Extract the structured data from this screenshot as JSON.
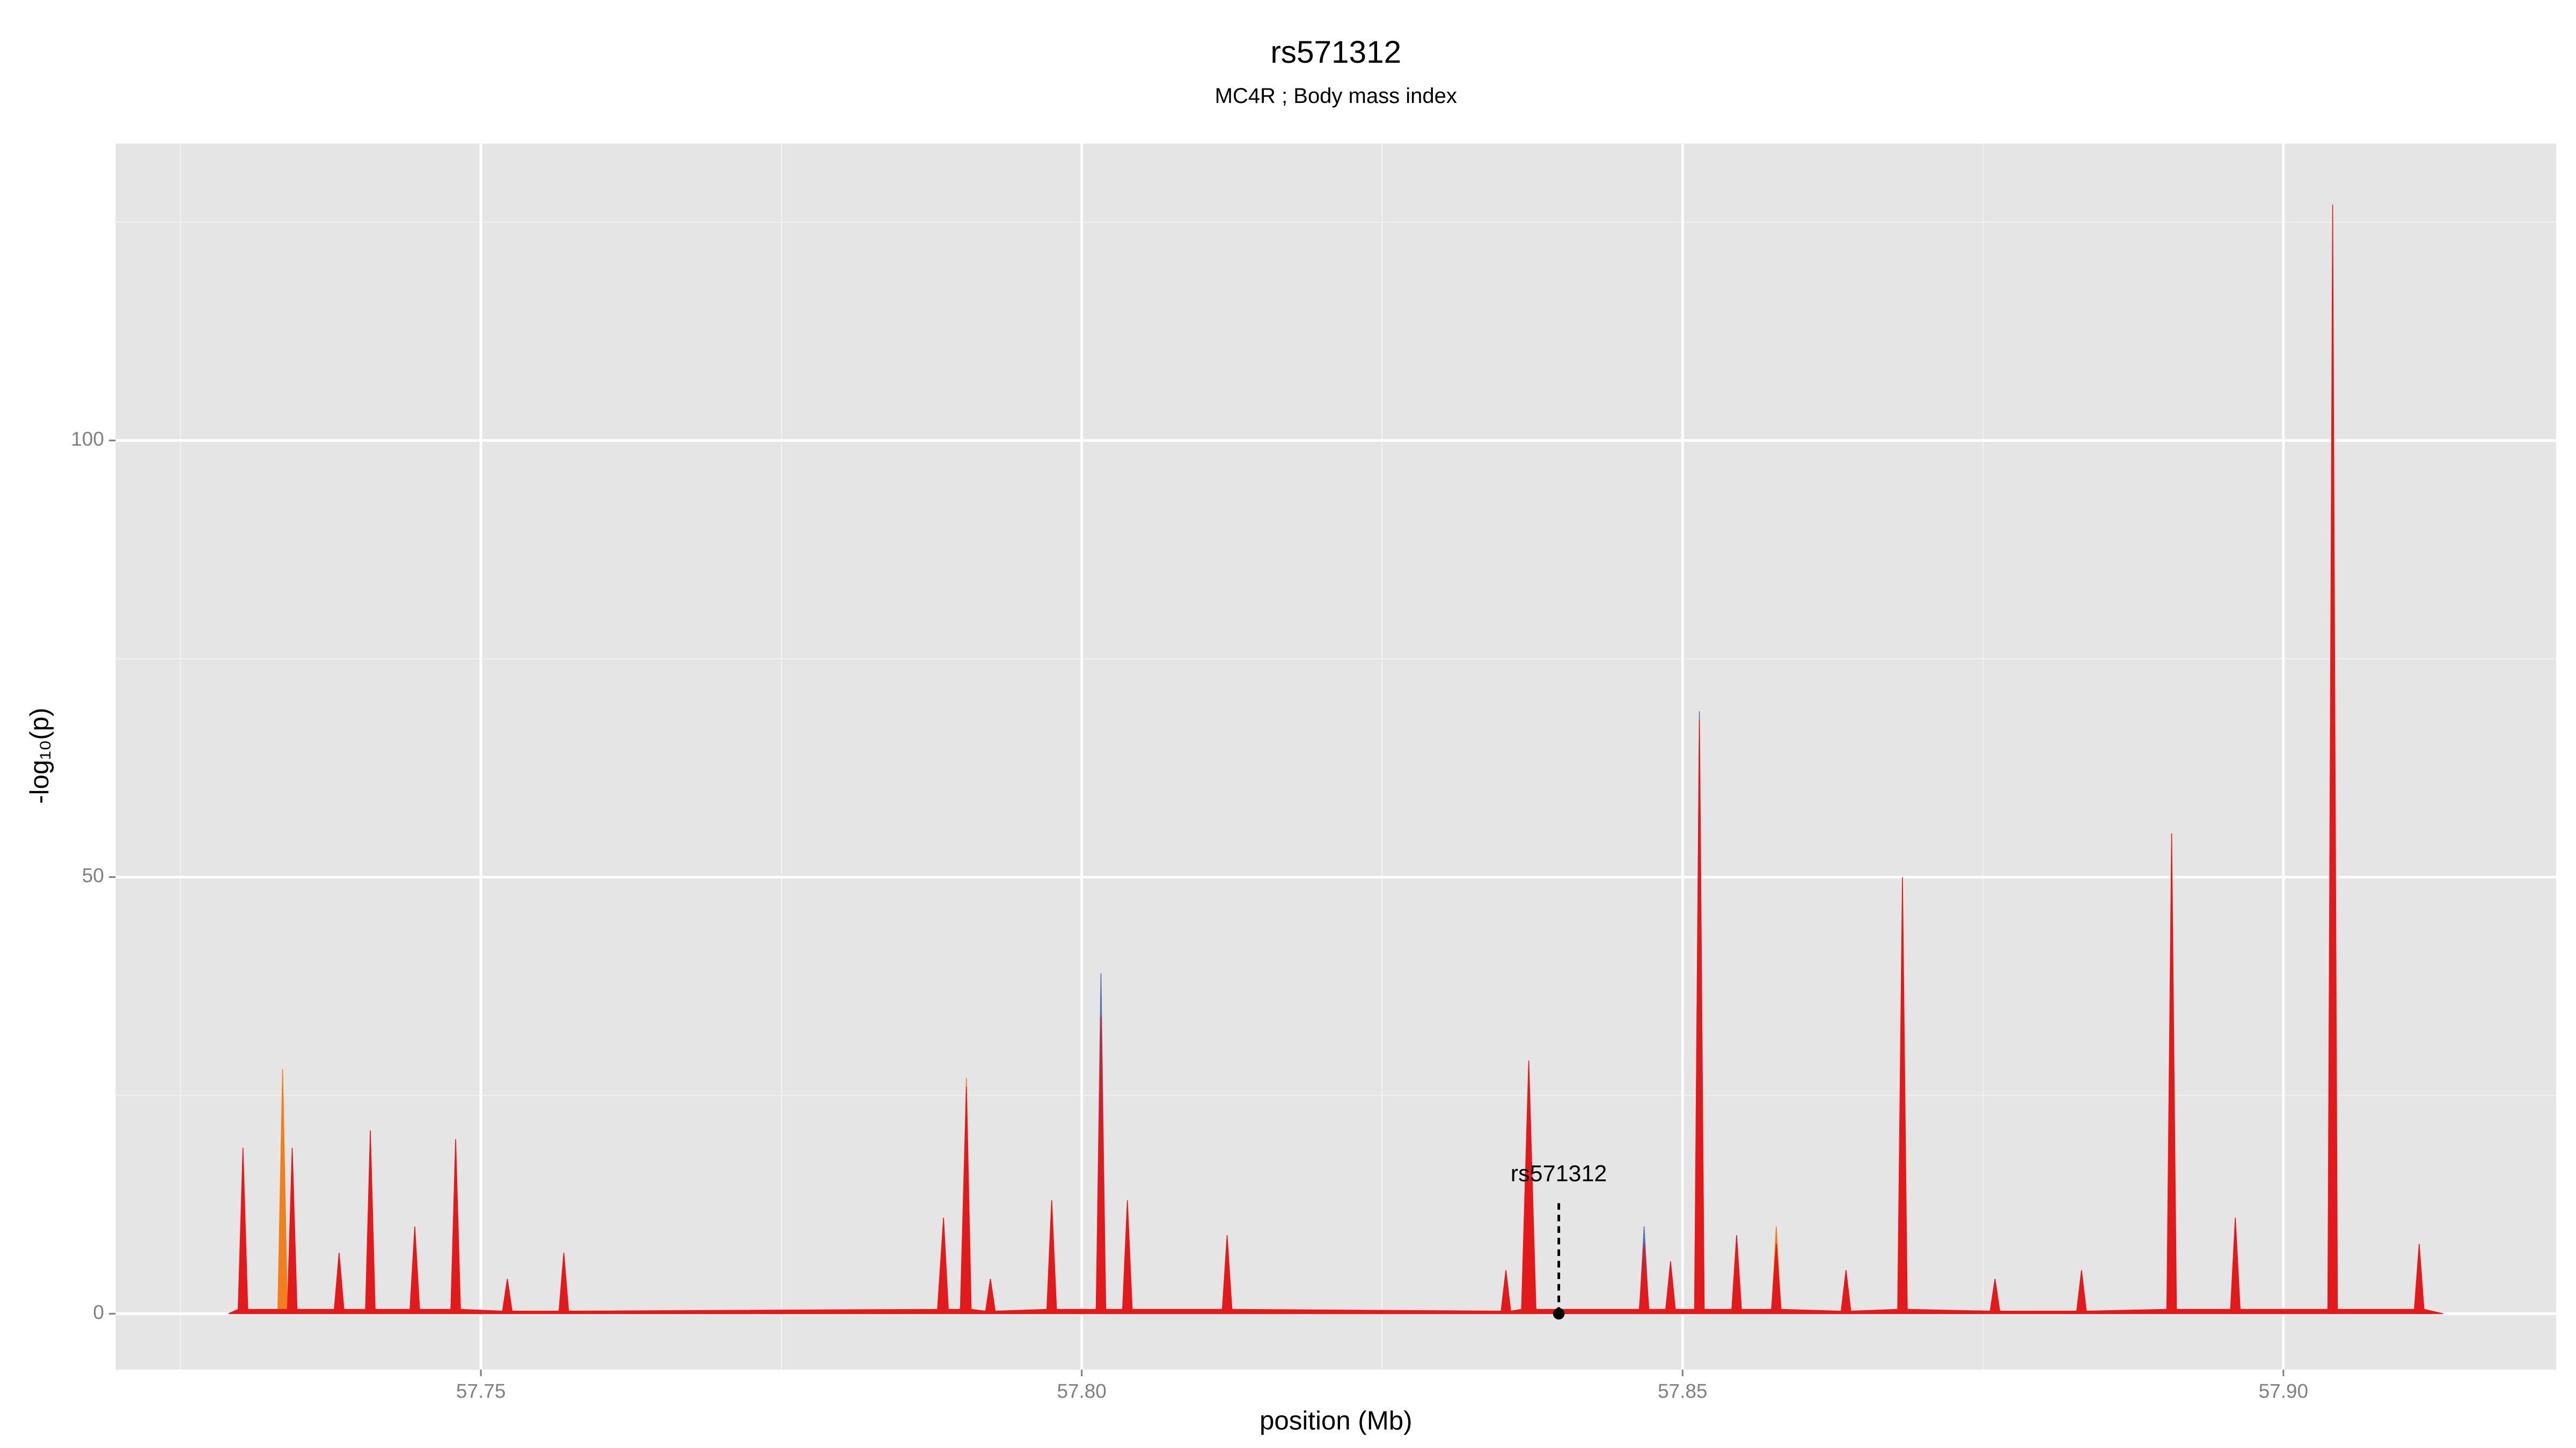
{
  "chart_data": {
    "type": "area",
    "title": "rs571312",
    "subtitle": "MC4R ; Body mass index",
    "x_label": "position (Mb)",
    "y_label": "-log₁₀(p)",
    "xlim": [
      57.7196,
      57.9227
    ],
    "ylim": [
      -6.4,
      134
    ],
    "xticks": [
      57.75,
      {
        "value": 57.8,
        "label": "57.80"
      },
      57.85,
      {
        "value": 57.9,
        "label": "57.90"
      }
    ],
    "x_minor_ticks": [
      57.725,
      57.775,
      57.825,
      57.875
    ],
    "yticks": [
      0,
      50,
      100
    ],
    "y_minor_ticks": [
      25,
      75,
      125
    ],
    "grid": true,
    "annotation": {
      "label": "rs571312",
      "x": 57.8397,
      "y": 0
    },
    "series": [
      {
        "color": "#5a6fb0",
        "x": [
          57.8012,
          57.8016,
          57.802,
          57.8464,
          57.8468,
          57.8472,
          57.851,
          57.8514,
          57.8518,
          57.8632,
          57.8636,
          57.864
        ],
        "values": [
          0,
          39,
          0,
          0,
          10,
          0,
          0,
          69,
          0,
          0,
          5,
          0
        ]
      },
      {
        "color": "#f07f1c",
        "x": [
          57.7331,
          57.7335,
          57.7339,
          57.79,
          57.7904,
          57.7908,
          57.7971,
          57.7975,
          57.7979,
          57.8574,
          57.8578,
          57.8582
        ],
        "values": [
          0,
          28,
          0,
          0,
          27,
          0,
          0,
          13,
          0,
          0,
          10,
          0
        ]
      },
      {
        "color": "#e31a1c",
        "x": [
          57.729,
          57.7298,
          57.7302,
          57.7306,
          57.7339,
          57.7343,
          57.7347,
          57.7378,
          57.7382,
          57.7386,
          57.7404,
          57.7408,
          57.7412,
          57.7441,
          57.7445,
          57.7449,
          57.7475,
          57.7479,
          57.7483,
          57.7518,
          57.7522,
          57.7526,
          57.7565,
          57.7569,
          57.7573,
          57.788,
          57.7885,
          57.7889,
          57.7899,
          57.7904,
          57.7908,
          57.792,
          57.7924,
          57.7928,
          57.7971,
          57.7975,
          57.7979,
          57.8012,
          57.8016,
          57.802,
          57.8034,
          57.8038,
          57.8042,
          57.8117,
          57.8121,
          57.8125,
          57.8349,
          57.8353,
          57.8357,
          57.8366,
          57.8372,
          57.8378,
          57.8464,
          57.8468,
          57.8472,
          57.8486,
          57.849,
          57.8494,
          57.851,
          57.8514,
          57.8518,
          57.8541,
          57.8545,
          57.8549,
          57.8574,
          57.8578,
          57.8582,
          57.8632,
          57.8636,
          57.864,
          57.8679,
          57.8683,
          57.8687,
          57.8756,
          57.876,
          57.8764,
          57.8828,
          57.8832,
          57.8836,
          57.8903,
          57.8907,
          57.8911,
          57.8956,
          57.896,
          57.8964,
          57.9037,
          57.9041,
          57.9045,
          57.9109,
          57.9113,
          57.9117,
          57.9133
        ],
        "values": [
          0,
          0.5,
          19,
          0.5,
          0.5,
          19,
          0.5,
          0.5,
          7,
          0.5,
          0.5,
          21,
          0.5,
          0.5,
          10,
          0.5,
          0.5,
          20,
          0.5,
          0.3,
          4,
          0.3,
          0.3,
          7,
          0.3,
          0.5,
          11,
          0.5,
          0.5,
          26,
          0.5,
          0.3,
          4,
          0.3,
          0.5,
          13,
          0.5,
          0.5,
          34,
          0.5,
          0.5,
          13,
          0.5,
          0.5,
          9,
          0.5,
          0.3,
          5,
          0.3,
          0.5,
          29,
          0.5,
          0.5,
          8,
          0.5,
          0.5,
          6,
          0.5,
          0.5,
          68,
          0.5,
          0.5,
          9,
          0.5,
          0.5,
          8,
          0.5,
          0.3,
          5,
          0.3,
          0.5,
          50,
          0.5,
          0.3,
          4,
          0.3,
          0.3,
          5,
          0.3,
          0.5,
          55,
          0.5,
          0.5,
          11,
          0.5,
          0.5,
          127,
          0.5,
          0.5,
          8,
          0.5,
          0
        ]
      }
    ]
  }
}
